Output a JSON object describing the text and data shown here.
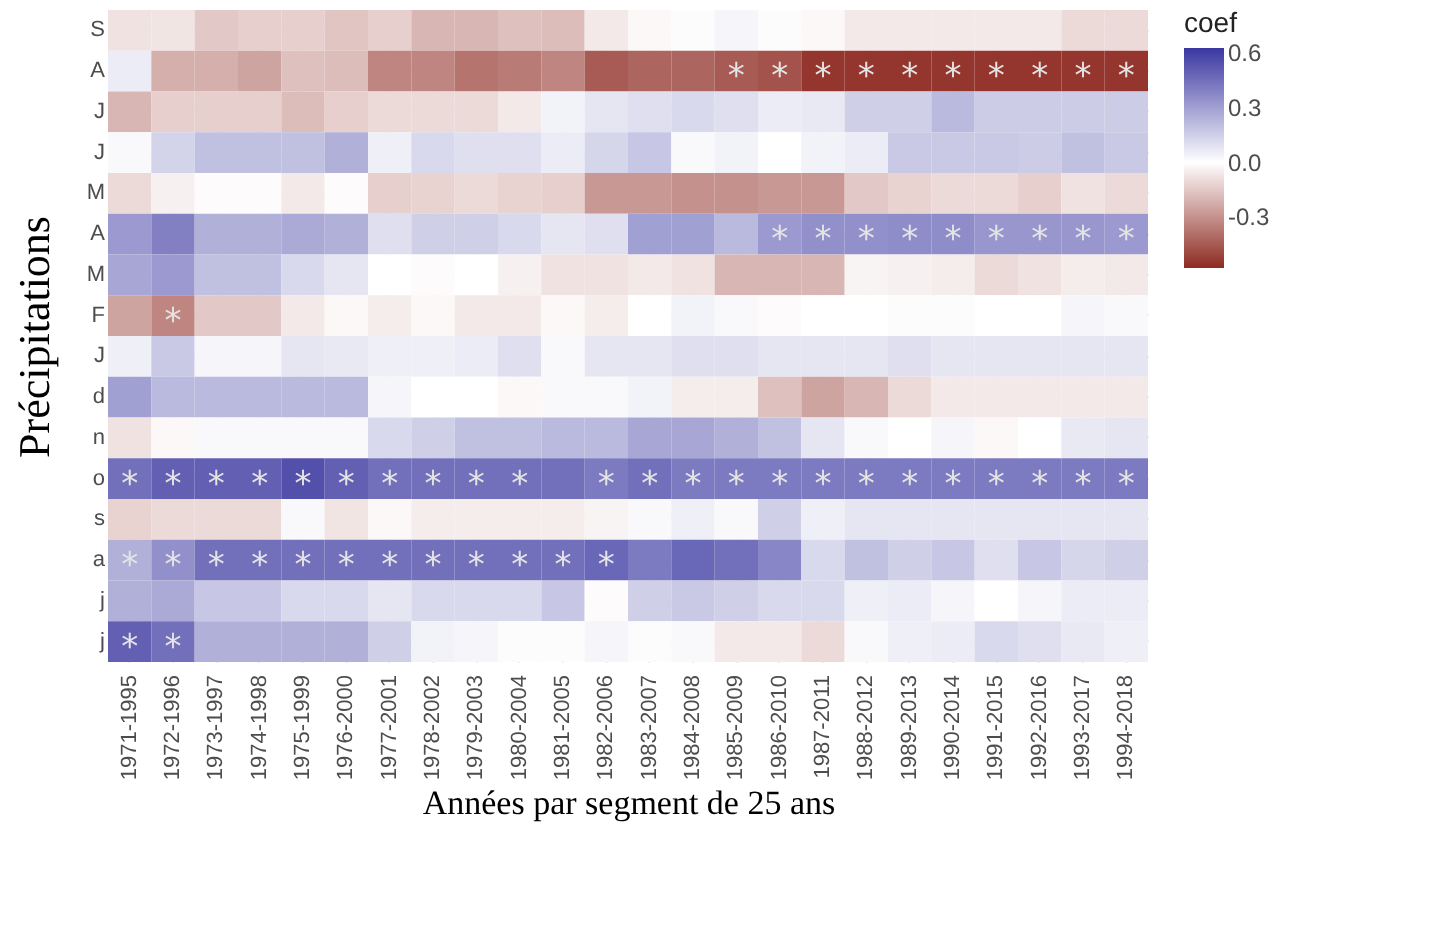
{
  "chart_data": {
    "type": "heatmap",
    "xlabel": "Années par segment de 25 ans",
    "ylabel": "Précipitations",
    "legend_title": "coef",
    "categories": [
      "1971-1995",
      "1972-1996",
      "1973-1997",
      "1974-1998",
      "1975-1999",
      "1976-2000",
      "1977-2001",
      "1978-2002",
      "1979-2003",
      "1980-2004",
      "1981-2005",
      "1982-2006",
      "1983-2007",
      "1984-2008",
      "1985-2009",
      "1986-2010",
      "1987-2011",
      "1988-2012",
      "1989-2013",
      "1990-2014",
      "1991-2015",
      "1992-2016",
      "1993-2017",
      "1994-2018"
    ],
    "y_categories": [
      "S",
      "A",
      "J",
      "J",
      "M",
      "A",
      "M",
      "F",
      "J",
      "d",
      "n",
      "o",
      "s",
      "a",
      "j",
      "j"
    ],
    "cells": [
      [
        -0.08,
        -0.07,
        -0.15,
        -0.13,
        -0.13,
        -0.16,
        -0.13,
        -0.2,
        -0.2,
        -0.17,
        -0.18,
        -0.06,
        -0.02,
        0.01,
        0.03,
        0.01,
        -0.02,
        -0.06,
        -0.06,
        -0.06,
        -0.06,
        -0.06,
        -0.1,
        -0.1
      ],
      [
        0.06,
        -0.22,
        -0.22,
        -0.25,
        -0.17,
        -0.18,
        -0.33,
        -0.33,
        -0.38,
        -0.36,
        -0.33,
        -0.45,
        -0.42,
        -0.42,
        -0.45,
        -0.47,
        -0.55,
        -0.55,
        -0.55,
        -0.55,
        -0.55,
        -0.55,
        -0.55,
        -0.55
      ],
      [
        -0.2,
        -0.13,
        -0.13,
        -0.13,
        -0.18,
        -0.13,
        -0.1,
        -0.1,
        -0.1,
        -0.06,
        0.04,
        0.08,
        0.1,
        0.12,
        0.1,
        0.06,
        0.07,
        0.15,
        0.15,
        0.22,
        0.16,
        0.16,
        0.16,
        0.16
      ],
      [
        0.02,
        0.14,
        0.2,
        0.2,
        0.2,
        0.25,
        0.05,
        0.12,
        0.1,
        0.1,
        0.06,
        0.13,
        0.18,
        0.02,
        0.04,
        0.0,
        0.04,
        0.06,
        0.17,
        0.17,
        0.17,
        0.16,
        0.2,
        0.17
      ],
      [
        -0.1,
        -0.04,
        -0.01,
        -0.01,
        -0.06,
        -0.01,
        -0.13,
        -0.12,
        -0.1,
        -0.12,
        -0.13,
        -0.28,
        -0.28,
        -0.3,
        -0.3,
        -0.28,
        -0.28,
        -0.15,
        -0.12,
        -0.1,
        -0.1,
        -0.13,
        -0.08,
        -0.1
      ],
      [
        0.32,
        0.4,
        0.25,
        0.25,
        0.27,
        0.25,
        0.1,
        0.15,
        0.15,
        0.12,
        0.08,
        0.1,
        0.3,
        0.3,
        0.22,
        0.32,
        0.35,
        0.35,
        0.36,
        0.36,
        0.33,
        0.33,
        0.33,
        0.32
      ],
      [
        0.28,
        0.32,
        0.2,
        0.2,
        0.12,
        0.08,
        0.0,
        -0.01,
        0.0,
        -0.04,
        -0.08,
        -0.08,
        -0.06,
        -0.08,
        -0.2,
        -0.2,
        -0.2,
        -0.03,
        -0.04,
        -0.05,
        -0.1,
        -0.08,
        -0.05,
        -0.06
      ],
      [
        -0.25,
        -0.33,
        -0.15,
        -0.15,
        -0.06,
        -0.02,
        -0.05,
        -0.02,
        -0.06,
        -0.06,
        -0.02,
        -0.05,
        0.0,
        0.04,
        0.02,
        -0.01,
        0.0,
        0.0,
        0.01,
        0.01,
        0.0,
        0.0,
        0.03,
        0.02
      ],
      [
        0.05,
        0.17,
        0.03,
        0.03,
        0.08,
        0.07,
        0.05,
        0.05,
        0.06,
        0.1,
        0.02,
        0.08,
        0.08,
        0.1,
        0.1,
        0.08,
        0.08,
        0.08,
        0.1,
        0.08,
        0.08,
        0.08,
        0.08,
        0.08
      ],
      [
        0.3,
        0.22,
        0.22,
        0.22,
        0.22,
        0.22,
        0.03,
        0.0,
        0.0,
        -0.02,
        0.02,
        0.02,
        0.04,
        -0.05,
        -0.05,
        -0.17,
        -0.25,
        -0.2,
        -0.1,
        -0.06,
        -0.06,
        -0.06,
        -0.06,
        -0.06
      ],
      [
        -0.08,
        -0.02,
        0.02,
        0.02,
        0.02,
        0.02,
        0.12,
        0.15,
        0.2,
        0.2,
        0.22,
        0.22,
        0.28,
        0.28,
        0.25,
        0.2,
        0.08,
        0.02,
        0.0,
        0.03,
        -0.02,
        0.0,
        0.07,
        0.08
      ],
      [
        0.45,
        0.5,
        0.5,
        0.5,
        0.55,
        0.5,
        0.45,
        0.45,
        0.45,
        0.45,
        0.45,
        0.42,
        0.45,
        0.42,
        0.42,
        0.42,
        0.42,
        0.42,
        0.42,
        0.42,
        0.42,
        0.42,
        0.42,
        0.42
      ],
      [
        -0.12,
        -0.1,
        -0.1,
        -0.1,
        0.02,
        -0.07,
        -0.02,
        -0.05,
        -0.05,
        -0.05,
        -0.05,
        -0.03,
        0.02,
        0.05,
        0.02,
        0.15,
        0.05,
        0.08,
        0.08,
        0.08,
        0.08,
        0.08,
        0.08,
        0.08
      ],
      [
        0.25,
        0.35,
        0.45,
        0.45,
        0.45,
        0.45,
        0.45,
        0.45,
        0.45,
        0.45,
        0.45,
        0.48,
        0.42,
        0.48,
        0.45,
        0.38,
        0.12,
        0.2,
        0.15,
        0.18,
        0.1,
        0.18,
        0.13,
        0.15
      ],
      [
        0.25,
        0.27,
        0.18,
        0.18,
        0.12,
        0.12,
        0.08,
        0.12,
        0.12,
        0.12,
        0.18,
        -0.01,
        0.15,
        0.17,
        0.15,
        0.12,
        0.12,
        0.05,
        0.06,
        0.03,
        0.0,
        0.03,
        0.06,
        0.06
      ],
      [
        0.5,
        0.45,
        0.25,
        0.25,
        0.25,
        0.25,
        0.15,
        0.04,
        0.03,
        0.01,
        0.01,
        0.03,
        0.01,
        0.02,
        -0.06,
        -0.06,
        -0.1,
        0.02,
        0.05,
        0.06,
        0.12,
        0.1,
        0.07,
        0.05
      ]
    ],
    "cell_labels": [
      [
        null,
        null,
        null,
        null,
        null,
        null,
        null,
        null,
        null,
        null,
        null,
        null,
        null,
        null,
        null,
        null,
        null,
        null,
        null,
        null,
        null,
        null,
        null,
        null
      ],
      [
        null,
        null,
        null,
        null,
        null,
        null,
        null,
        null,
        null,
        null,
        null,
        null,
        null,
        null,
        "*",
        "*",
        "*",
        "*",
        "*",
        "*",
        "*",
        "*",
        "*",
        "*"
      ],
      [
        null,
        null,
        null,
        null,
        null,
        null,
        null,
        null,
        null,
        null,
        null,
        null,
        null,
        null,
        null,
        null,
        null,
        null,
        null,
        null,
        null,
        null,
        null,
        null
      ],
      [
        null,
        null,
        null,
        null,
        null,
        null,
        null,
        null,
        null,
        null,
        null,
        null,
        null,
        null,
        null,
        null,
        null,
        null,
        null,
        null,
        null,
        null,
        null,
        null
      ],
      [
        null,
        null,
        null,
        null,
        null,
        null,
        null,
        null,
        null,
        null,
        null,
        null,
        null,
        null,
        null,
        null,
        null,
        null,
        null,
        null,
        null,
        null,
        null,
        null
      ],
      [
        null,
        null,
        null,
        null,
        null,
        null,
        null,
        null,
        null,
        null,
        null,
        null,
        null,
        null,
        null,
        "*",
        "*",
        "*",
        "*",
        "*",
        "*",
        "*",
        "*",
        "*"
      ],
      [
        null,
        null,
        null,
        null,
        null,
        null,
        null,
        null,
        null,
        null,
        null,
        null,
        null,
        null,
        null,
        null,
        null,
        null,
        null,
        null,
        null,
        null,
        null,
        null
      ],
      [
        null,
        "*",
        null,
        null,
        null,
        null,
        null,
        null,
        null,
        null,
        null,
        null,
        null,
        null,
        null,
        null,
        null,
        null,
        null,
        null,
        null,
        null,
        null,
        null
      ],
      [
        null,
        null,
        null,
        null,
        null,
        null,
        null,
        null,
        null,
        null,
        null,
        null,
        null,
        null,
        null,
        null,
        null,
        null,
        null,
        null,
        null,
        null,
        null,
        null
      ],
      [
        null,
        null,
        null,
        null,
        null,
        null,
        null,
        null,
        null,
        null,
        null,
        null,
        null,
        null,
        null,
        null,
        null,
        null,
        null,
        null,
        null,
        null,
        null,
        null
      ],
      [
        null,
        null,
        null,
        null,
        null,
        null,
        null,
        null,
        null,
        null,
        null,
        null,
        null,
        null,
        null,
        null,
        null,
        null,
        null,
        null,
        null,
        null,
        null,
        null
      ],
      [
        "*",
        "*",
        "*",
        "*",
        "*",
        "*",
        "*",
        "*",
        "*",
        "*",
        null,
        "*",
        "*",
        "*",
        "*",
        "*",
        "*",
        "*",
        "*",
        "*",
        "*",
        "*",
        "*",
        "*"
      ],
      [
        null,
        null,
        null,
        null,
        null,
        null,
        null,
        null,
        null,
        null,
        null,
        null,
        null,
        null,
        null,
        null,
        null,
        null,
        null,
        null,
        null,
        null,
        null,
        null
      ],
      [
        "*",
        "*",
        "*",
        "*",
        "*",
        "*",
        "*",
        "*",
        "*",
        "*",
        "*",
        "*",
        null,
        null,
        null,
        null,
        null,
        null,
        null,
        null,
        null,
        null,
        null,
        null
      ],
      [
        null,
        null,
        null,
        null,
        null,
        null,
        null,
        null,
        null,
        null,
        null,
        null,
        null,
        null,
        null,
        null,
        null,
        null,
        null,
        null,
        null,
        null,
        null,
        null
      ],
      [
        "*",
        "*",
        null,
        null,
        null,
        null,
        null,
        null,
        null,
        null,
        null,
        null,
        null,
        null,
        null,
        null,
        null,
        null,
        null,
        null,
        null,
        null,
        null,
        null
      ]
    ],
    "clim": [
      -0.58,
      0.63
    ],
    "cticks": [
      0.6,
      0.3,
      {
        "value": 0,
        "label": "0.0"
      },
      -0.3
    ],
    "colors": [
      "#8e2b22",
      "#ffffff",
      "#3a37a0"
    ],
    "grid": true
  }
}
